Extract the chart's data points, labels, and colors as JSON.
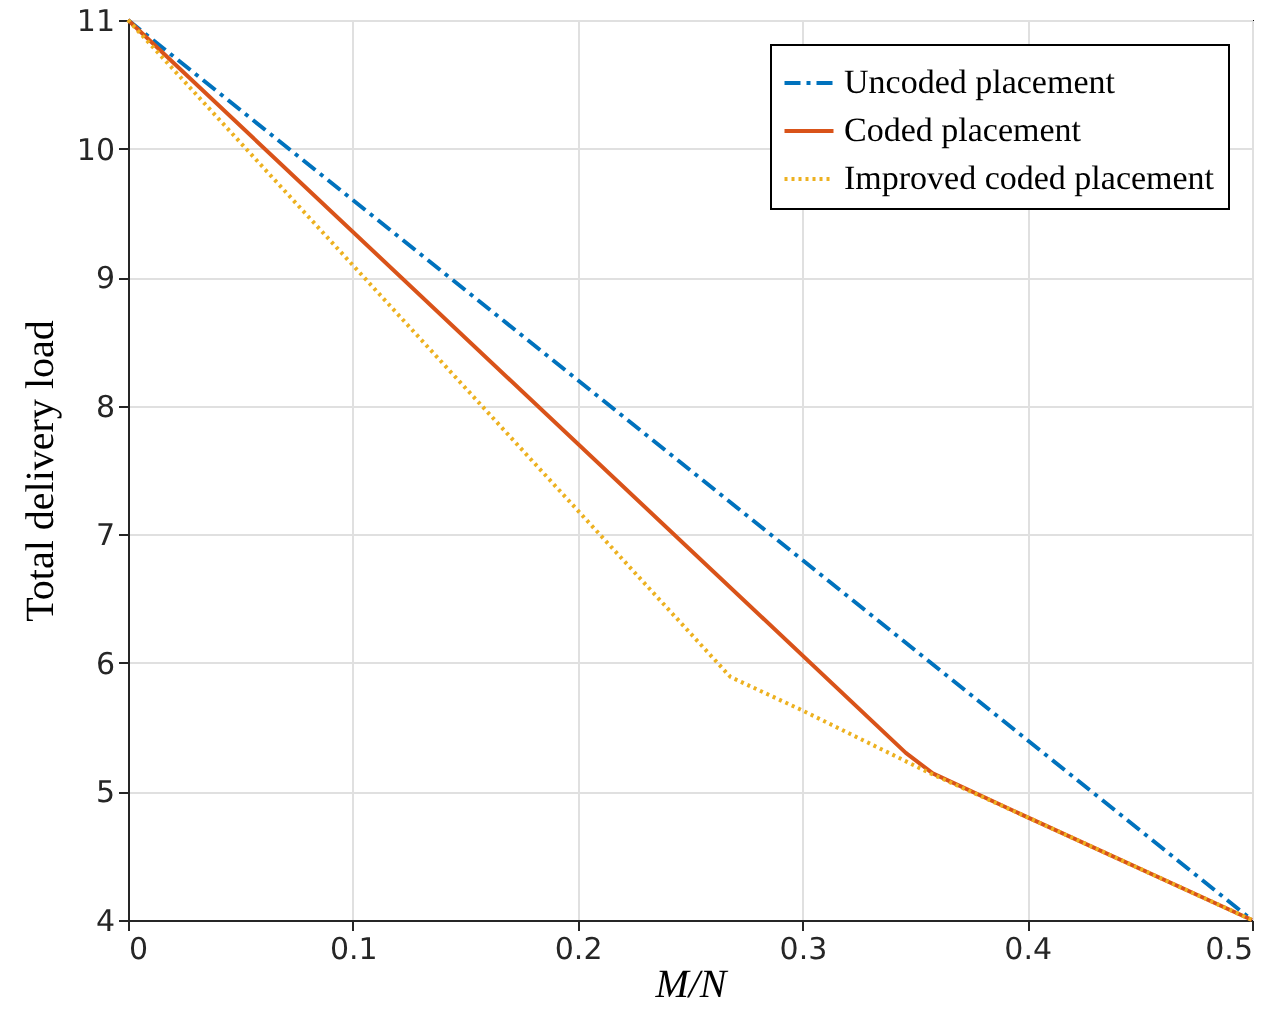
{
  "chart_data": {
    "type": "line",
    "xlabel": "M/N",
    "ylabel": "Total delivery load",
    "xlim": [
      0,
      0.5
    ],
    "ylim": [
      4,
      11
    ],
    "xticks": [
      0,
      0.1,
      0.2,
      0.3,
      0.4,
      0.5
    ],
    "yticks": [
      4,
      5,
      6,
      7,
      8,
      9,
      10,
      11
    ],
    "grid": true,
    "legend": "top right",
    "marker": "none",
    "series": [
      {
        "name": "Uncoded placement",
        "color": "#0072bd",
        "line_style": "dashed",
        "x": [
          0,
          0.5
        ],
        "values": [
          11,
          4
        ]
      },
      {
        "name": "Coded placement",
        "color": "#d95319",
        "line_style": "solid",
        "x": [
          0,
          0.346,
          0.358,
          0.4,
          0.5
        ],
        "values": [
          11,
          5.3,
          5.14,
          4.8,
          4
        ]
      },
      {
        "name": "Improved coded placement",
        "color": "#edb120",
        "line_style": "dotted",
        "x": [
          0,
          0.268,
          0.3,
          0.357,
          0.4,
          0.5
        ],
        "values": [
          11,
          5.89,
          5.63,
          5.14,
          4.8,
          4
        ]
      }
    ]
  }
}
